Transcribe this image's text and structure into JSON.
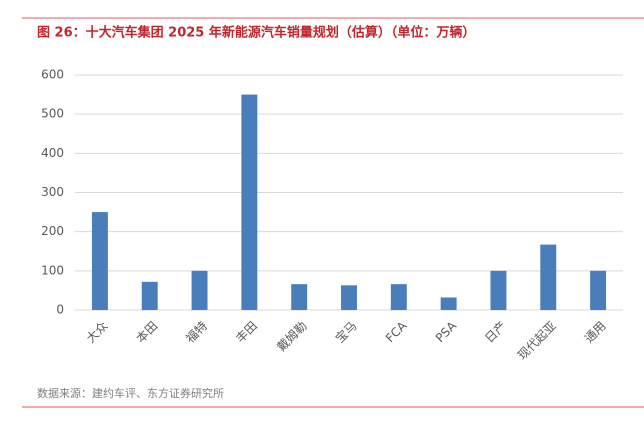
{
  "chart_data": {
    "type": "bar",
    "title": "图 26：十大汽车集团 2025 年新能源汽车销量规划（估算）（单位：万辆）",
    "source": "数据来源：建约车评、东方证券研究所",
    "categories": [
      "大众",
      "本田",
      "福特",
      "丰田",
      "戴姆勒",
      "宝马",
      "FCA",
      "PSA",
      "日产",
      "现代起亚",
      "通用"
    ],
    "values": [
      250,
      72,
      100,
      550,
      66,
      63,
      66,
      32,
      100,
      167,
      100
    ],
    "color": "#4a7ebb",
    "ylim": [
      0,
      600
    ],
    "yticks": [
      0,
      100,
      200,
      300,
      400,
      500,
      600
    ],
    "grid": true
  }
}
